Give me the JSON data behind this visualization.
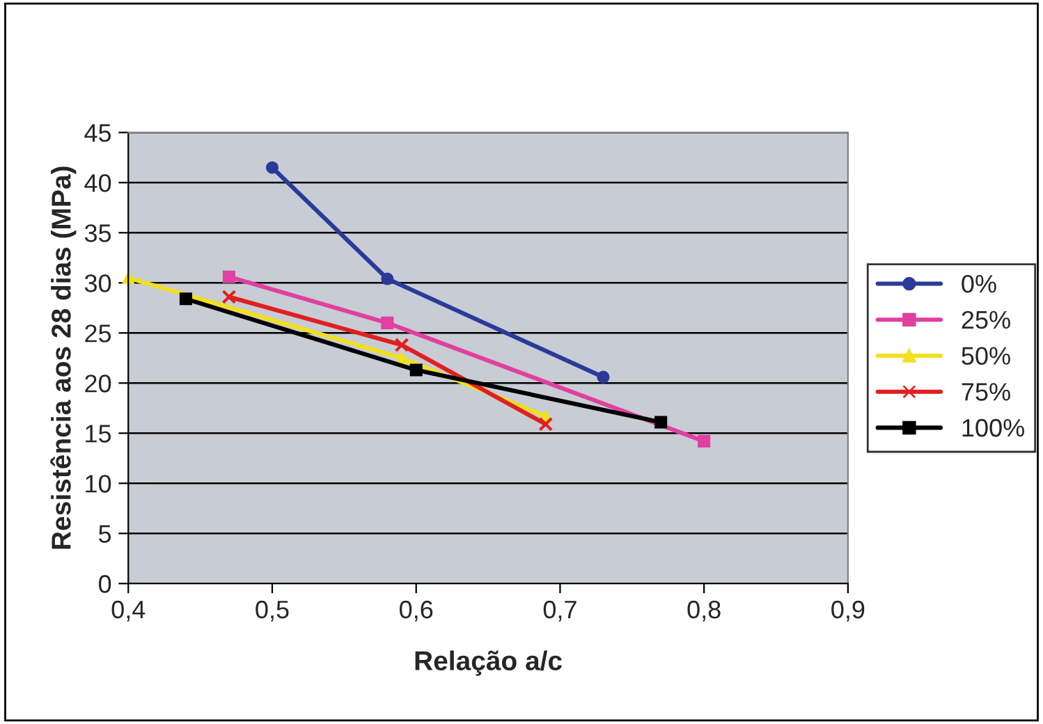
{
  "chart_data": {
    "type": "line",
    "xlabel": "Relação a/c",
    "ylabel": "Resistência aos 28 dias (MPa)",
    "series": [
      {
        "name": "0%",
        "color": "#2b3a9a",
        "marker": "circle",
        "x": [
          0.5,
          0.58,
          0.73
        ],
        "values": [
          41.5,
          30.4,
          20.6
        ]
      },
      {
        "name": "25%",
        "color": "#e040a0",
        "marker": "square",
        "x": [
          0.47,
          0.58,
          0.8
        ],
        "values": [
          30.6,
          26,
          14.2
        ]
      },
      {
        "name": "50%",
        "color": "#f0e020",
        "marker": "triangle",
        "x": [
          0.4,
          0.59,
          0.69
        ],
        "values": [
          30.5,
          22.5,
          16.7
        ]
      },
      {
        "name": "75%",
        "color": "#e02020",
        "marker": "cross",
        "x": [
          0.47,
          0.59,
          0.69
        ],
        "values": [
          28.6,
          23.8,
          15.9
        ]
      },
      {
        "name": "100%",
        "color": "#000000",
        "marker": "square",
        "x": [
          0.44,
          0.6,
          0.77
        ],
        "values": [
          28.4,
          21.3,
          16.1
        ]
      }
    ],
    "xlim": [
      0.4,
      0.9
    ],
    "xticks": [
      {
        "value": 0.4,
        "label": "0,4"
      },
      {
        "value": 0.5,
        "label": "0,5"
      },
      {
        "value": 0.6,
        "label": "0,6"
      },
      {
        "value": 0.7,
        "label": "0,7"
      },
      {
        "value": 0.8,
        "label": "0,8"
      },
      {
        "value": 0.9,
        "label": "0,9"
      }
    ],
    "ylim": [
      0,
      45
    ],
    "yticks": [
      0,
      5,
      10,
      15,
      20,
      25,
      30,
      35,
      40,
      45
    ],
    "grid": "y",
    "legend": "right",
    "line_style": "solid"
  }
}
